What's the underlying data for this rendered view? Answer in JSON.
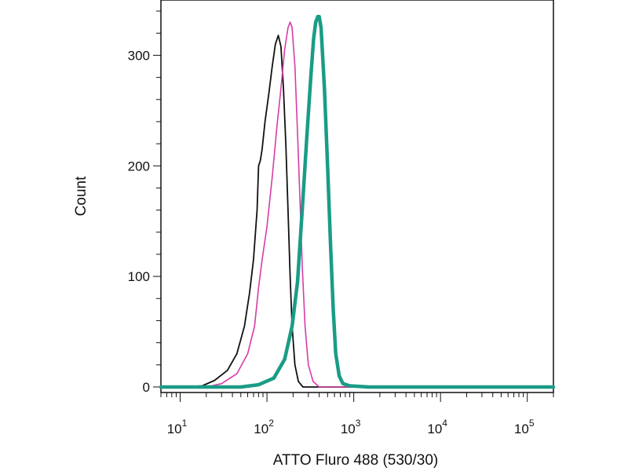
{
  "chart_data": {
    "type": "line",
    "xlabel": "ATTO Fluro 488 (530/30)",
    "ylabel": "Count",
    "x_scale": "log",
    "xlim": [
      6,
      200000
    ],
    "ylim": [
      -5,
      350
    ],
    "grid": false,
    "y_ticks": [
      {
        "value": 0,
        "label": "0"
      },
      {
        "value": 100,
        "label": "100"
      },
      {
        "value": 200,
        "label": "200"
      },
      {
        "value": 300,
        "label": "300"
      }
    ],
    "x_ticks": [
      {
        "value": 10,
        "base": "10",
        "exp": "1"
      },
      {
        "value": 100,
        "base": "10",
        "exp": "2"
      },
      {
        "value": 1000,
        "base": "10",
        "exp": "3"
      },
      {
        "value": 10000,
        "base": "10",
        "exp": "4"
      },
      {
        "value": 100000,
        "base": "10",
        "exp": "5"
      }
    ],
    "series": [
      {
        "color": "#111111",
        "width": 1.8,
        "points": [
          [
            6,
            0
          ],
          [
            12,
            0
          ],
          [
            18,
            1
          ],
          [
            25,
            6
          ],
          [
            35,
            15
          ],
          [
            45,
            30
          ],
          [
            55,
            55
          ],
          [
            63,
            85
          ],
          [
            70,
            115
          ],
          [
            77,
            160
          ],
          [
            80,
            200
          ],
          [
            84,
            205
          ],
          [
            88,
            215
          ],
          [
            95,
            240
          ],
          [
            105,
            265
          ],
          [
            115,
            290
          ],
          [
            125,
            310
          ],
          [
            135,
            318
          ],
          [
            145,
            308
          ],
          [
            155,
            270
          ],
          [
            165,
            220
          ],
          [
            175,
            160
          ],
          [
            185,
            100
          ],
          [
            195,
            55
          ],
          [
            210,
            20
          ],
          [
            230,
            5
          ],
          [
            260,
            0
          ],
          [
            200000,
            0
          ]
        ]
      },
      {
        "color": "#d63ca8",
        "width": 1.6,
        "points": [
          [
            6,
            0
          ],
          [
            20,
            0
          ],
          [
            30,
            3
          ],
          [
            45,
            12
          ],
          [
            60,
            30
          ],
          [
            72,
            55
          ],
          [
            80,
            90
          ],
          [
            88,
            115
          ],
          [
            100,
            145
          ],
          [
            115,
            190
          ],
          [
            130,
            235
          ],
          [
            145,
            270
          ],
          [
            160,
            305
          ],
          [
            175,
            325
          ],
          [
            185,
            330
          ],
          [
            195,
            325
          ],
          [
            210,
            290
          ],
          [
            225,
            230
          ],
          [
            240,
            170
          ],
          [
            255,
            110
          ],
          [
            275,
            55
          ],
          [
            300,
            20
          ],
          [
            340,
            5
          ],
          [
            400,
            0
          ],
          [
            200000,
            0
          ]
        ]
      },
      {
        "color": "#1a9c86",
        "width": 4.5,
        "points": [
          [
            6,
            0
          ],
          [
            50,
            0
          ],
          [
            80,
            2
          ],
          [
            120,
            8
          ],
          [
            160,
            25
          ],
          [
            195,
            55
          ],
          [
            225,
            95
          ],
          [
            255,
            160
          ],
          [
            290,
            230
          ],
          [
            320,
            280
          ],
          [
            345,
            315
          ],
          [
            365,
            330
          ],
          [
            385,
            335
          ],
          [
            400,
            335
          ],
          [
            420,
            325
          ],
          [
            460,
            270
          ],
          [
            500,
            200
          ],
          [
            540,
            130
          ],
          [
            580,
            70
          ],
          [
            620,
            30
          ],
          [
            680,
            10
          ],
          [
            750,
            3
          ],
          [
            900,
            1
          ],
          [
            1500,
            0
          ],
          [
            200000,
            0
          ]
        ]
      }
    ]
  }
}
